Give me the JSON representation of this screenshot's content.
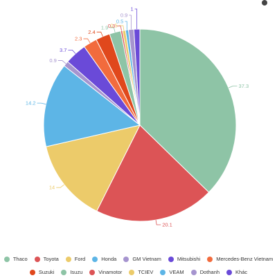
{
  "chart_data": {
    "type": "pie",
    "title": "",
    "slices": [
      {
        "name": "Thaco",
        "value": 37.3,
        "color": "#8ec4a6"
      },
      {
        "name": "Toyota",
        "value": 20.1,
        "color": "#dc5456"
      },
      {
        "name": "Ford",
        "value": 14,
        "color": "#eccb6a"
      },
      {
        "name": "Honda",
        "value": 14.2,
        "color": "#5db5e6"
      },
      {
        "name": "GM Vietnam",
        "value": 0.9,
        "color": "#a694cf"
      },
      {
        "name": "Mitsubishi",
        "value": 3.7,
        "color": "#6a4ad8"
      },
      {
        "name": "Mercedes-Benz Vietnam",
        "value": 2.3,
        "color": "#f26b3d"
      },
      {
        "name": "Suzuki",
        "value": 2.4,
        "color": "#e0481c"
      },
      {
        "name": "Isuzu",
        "value": 1.9,
        "color": "#8ec4a6"
      },
      {
        "name": "Vinamotor",
        "value": 0.3,
        "color": "#dc5456"
      },
      {
        "name": "TCIEV",
        "value": 0.5,
        "color": "#eccb6a"
      },
      {
        "name": "VEAM",
        "value": 0.5,
        "color": "#5db5e6"
      },
      {
        "name": "Dothanh",
        "value": 0.9,
        "color": "#a694cf"
      },
      {
        "name": "Khác",
        "value": 1,
        "color": "#6a4ad8"
      }
    ],
    "legend_rows": [
      [
        "Thaco",
        "Toyota",
        "Ford",
        "Honda",
        "GM Vietnam",
        "Mitsubishi",
        "Mercedes-Benz Vietnam"
      ],
      [
        "Suzuki",
        "Isuzu",
        "Vinamotor",
        "TCIEV",
        "VEAM",
        "Dothanh",
        "Khác"
      ]
    ],
    "legend_position": "bottom",
    "start_angle_deg": 0,
    "direction": "clockwise"
  }
}
